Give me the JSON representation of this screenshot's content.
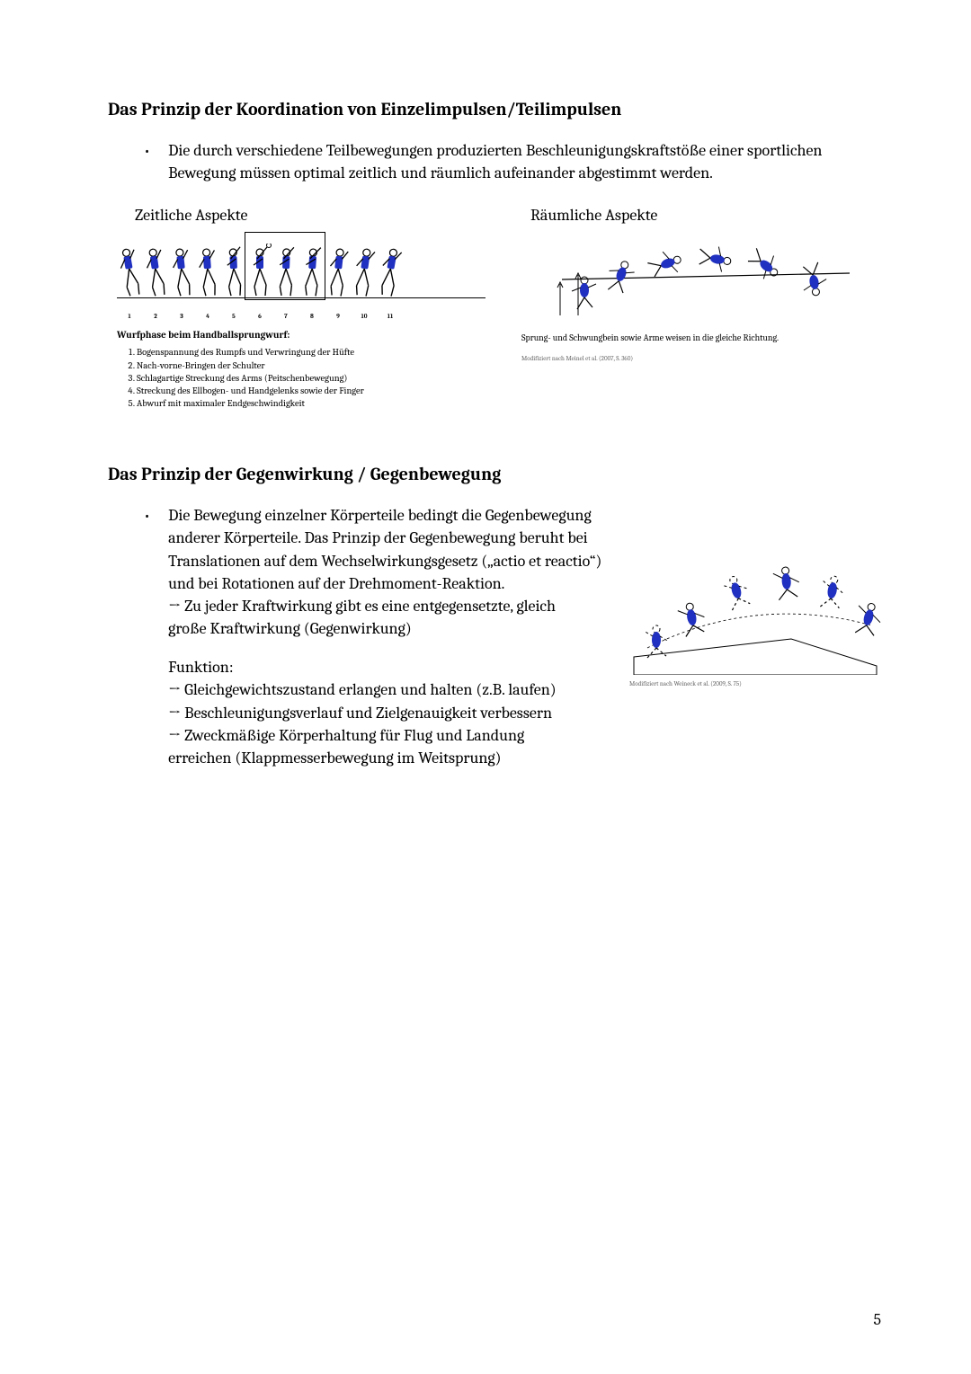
{
  "colors": {
    "text": "#000000",
    "bg": "#ffffff",
    "accent": "#2030c0",
    "cite": "#666666"
  },
  "section1": {
    "heading": "Das Prinzip der Koordination von Einzelimpulsen/Teilimpulsen",
    "bullet": "Die durch verschiedene Teilbewegungen produzierten Beschleunigungskraftstöße einer sportlichen Bewegung müssen optimal zeitlich und räumlich aufeinander abgestimmt werden.",
    "left_label": "Zeitliche Aspekte",
    "right_label": "Räumliche Aspekte",
    "frame_nums": [
      "1",
      "2",
      "3",
      "4",
      "5",
      "6",
      "7",
      "8",
      "9",
      "10",
      "11"
    ],
    "wurf_title": "Wurfphase beim Handballsprungwurf:",
    "wurf_items": [
      "Bogenspannung des Rumpfs und Verwringung der Hüfte",
      "Nach-vorne-Bringen der Schulter",
      "Schlagartige Streckung des Arms (Peitschenbewegung)",
      "Streckung des Ellbogen- und Handgelenks sowie der Finger",
      "Abwurf mit maximaler Endgeschwindigkeit"
    ],
    "right_caption": "Sprung- und Schwungbein sowie Arme weisen in die gleiche Richtung.",
    "right_cite": "Modifiziert nach Meinel et al. (2007, S. 360)"
  },
  "section2": {
    "heading": "Das Prinzip der Gegenwirkung / Gegenbewegung",
    "bullet_main": "Die Bewegung einzelner Körperteile bedingt die Gegenbewegung anderer Körperteile. Das Prinzip der Gegenbewegung beruht bei Translationen auf dem Wechselwirkungsgesetz („actio et reactio“) und bei Rotationen auf der Drehmoment-Reaktion.",
    "arrow1": "Zu jeder Kraftwirkung gibt es eine entgegensetzte, gleich",
    "arrow1b": "große Kraftwirkung (Gegenwirkung)",
    "funktion_head": "Funktion:",
    "fn1": "Gleichgewichtszustand erlangen und halten (z.B. laufen)",
    "fn2": "Beschleunigungsverlauf und Zielgenauigkeit verbessern",
    "fn3": "Zweckmäßige Körperhaltung für Flug und Landung",
    "fn3b": "erreichen (Klappmesserbewegung im Weitsprung)",
    "float_cite": "Modifiziert nach Weineck et al. (2009, S. 75)"
  },
  "page_number": "5"
}
